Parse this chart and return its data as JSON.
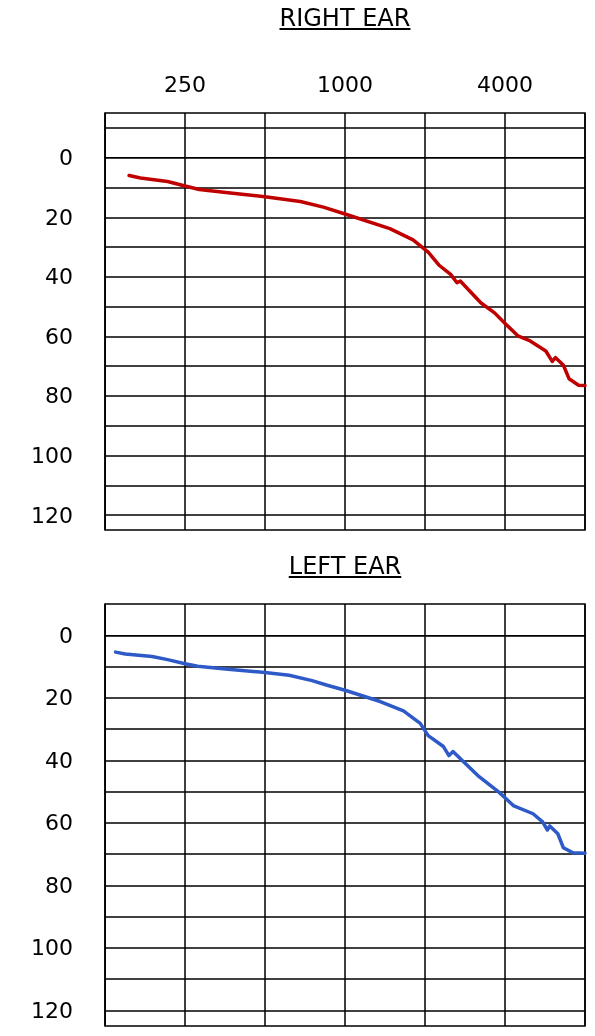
{
  "chart_data": [
    {
      "type": "line",
      "title": "RIGHT EAR",
      "log": "x",
      "xlim": [
        125,
        8000
      ],
      "xticks": [
        {
          "value": 125,
          "label": null
        },
        250,
        {
          "value": 500,
          "label": null
        },
        1000,
        {
          "value": 2000,
          "label": null
        },
        4000,
        {
          "value": 8000,
          "label": null
        }
      ],
      "ylim": [
        125,
        -15
      ],
      "yticks": [
        {
          "value": -10,
          "label": null
        },
        0,
        {
          "value": 10,
          "label": null
        },
        20,
        {
          "value": 30,
          "label": null
        },
        40,
        {
          "value": 50,
          "label": null
        },
        60,
        {
          "value": 70,
          "label": null
        },
        80,
        {
          "value": 90,
          "label": null
        },
        100,
        {
          "value": 110,
          "label": null
        },
        120
      ],
      "grid": true,
      "marker": "none",
      "line_style": "solid",
      "series": [
        {
          "color": "#c00000",
          "x": [
            154,
            170,
            215,
            250,
            283,
            363,
            500,
            679,
            829,
            1000,
            1475,
            1803,
            2056,
            2266,
            2497,
            2639,
            2714,
            3250,
            3655,
            4028,
            4470,
            4925,
            5697,
            6022,
            6191,
            6636,
            6964,
            7567,
            8000
          ],
          "values": [
            6,
            6.8,
            8,
            9.5,
            10.7,
            11.8,
            13.1,
            14.7,
            16.6,
            18.9,
            23.8,
            27.6,
            31.7,
            36.2,
            39.2,
            42,
            41.4,
            48.8,
            52.1,
            55.9,
            59.8,
            61.3,
            64.9,
            68.4,
            67.1,
            69.7,
            74.2,
            76.4,
            76.5
          ]
        }
      ]
    },
    {
      "type": "line",
      "title": "LEFT EAR",
      "log": "x",
      "xlim": [
        125,
        8000
      ],
      "xticks": [
        {
          "value": 125,
          "label": null
        },
        {
          "value": 250,
          "label": null
        },
        {
          "value": 500,
          "label": null
        },
        {
          "value": 1000,
          "label": null
        },
        {
          "value": 2000,
          "label": null
        },
        {
          "value": 4000,
          "label": null
        },
        {
          "value": 8000,
          "label": null
        }
      ],
      "ylim": [
        125,
        -10
      ],
      "yticks": [
        0,
        {
          "value": 10,
          "label": null
        },
        20,
        {
          "value": 30,
          "label": null
        },
        40,
        {
          "value": 50,
          "label": null
        },
        60,
        {
          "value": 70,
          "label": null
        },
        80,
        {
          "value": 90,
          "label": null
        },
        100,
        {
          "value": 110,
          "label": null
        },
        120
      ],
      "grid": true,
      "marker": "none",
      "line_style": "solid",
      "tick_labels": "y",
      "series": [
        {
          "color": "#2e5ac8",
          "x": [
            137,
            149,
            188,
            215,
            250,
            279,
            363,
            500,
            616,
            752,
            857,
            1000,
            1357,
            1659,
            1919,
            2056,
            2346,
            2462,
            2549,
            3161,
            3784,
            4318,
            5099,
            5541,
            5776,
            5898,
            6321,
            6636,
            7212,
            8000
          ],
          "values": [
            5.4,
            6,
            6.8,
            7.8,
            9.1,
            9.9,
            10.9,
            11.9,
            12.8,
            14.5,
            16,
            17.6,
            21.2,
            24.2,
            28.2,
            32.1,
            35.6,
            38.5,
            37.2,
            44.9,
            50.1,
            54.6,
            57.1,
            59.7,
            62.3,
            61,
            63.5,
            68,
            69.6,
            69.7
          ]
        }
      ]
    }
  ]
}
